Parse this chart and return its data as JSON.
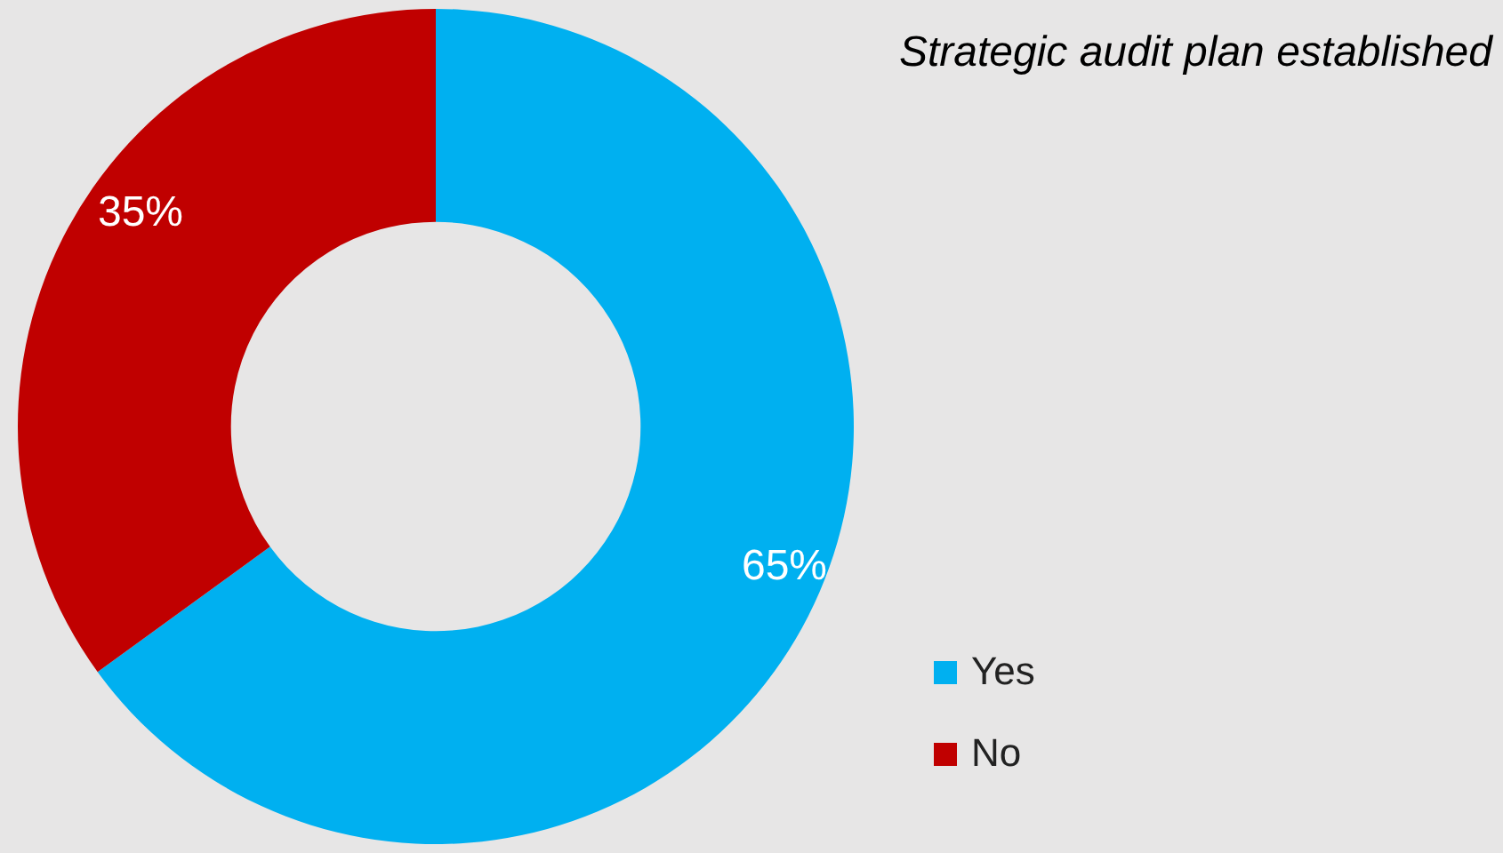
{
  "chart_data": {
    "type": "donut",
    "title": "Strategic audit plan established",
    "categories": [
      "Yes",
      "No"
    ],
    "values": [
      65,
      35
    ],
    "colors": [
      "#00b0f0",
      "#c00000"
    ],
    "value_labels": [
      "65%",
      "35%"
    ],
    "legend": "bottom right"
  }
}
